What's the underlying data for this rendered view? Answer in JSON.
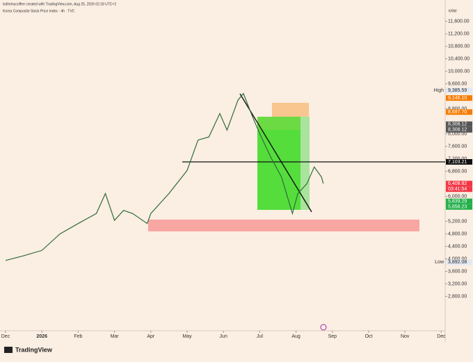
{
  "header": {
    "credit": "lxdimmycoffee created with TradingView.com, Aug 25, 2026 02:18 UTC+2",
    "symbol": "Korea Composite Stock Price Index · 4h · TVC",
    "currency": "KRW",
    "brand": "TradingView"
  },
  "chart_data": {
    "type": "line",
    "x": [
      0,
      0.5,
      1,
      1.5,
      2,
      2.5,
      2.75,
      3,
      3.25,
      3.5,
      3.9,
      4,
      4.5,
      5,
      5.3,
      5.6,
      5.9,
      6.1,
      6.4,
      6.55,
      6.8,
      7,
      7.3,
      7.6,
      7.9,
      8.05,
      8.3,
      8.5,
      8.7,
      8.75
    ],
    "series": [
      {
        "name": "Korea Composite Stock Price Index",
        "color": "#2f6b3a",
        "values": [
          3950,
          4100,
          4270,
          4800,
          5130,
          5450,
          6090,
          5230,
          5550,
          5450,
          5130,
          5450,
          6090,
          6830,
          7800,
          7900,
          8650,
          8120,
          9080,
          9290,
          8550,
          8010,
          7260,
          6620,
          5450,
          6090,
          6410,
          6940,
          6620,
          6408.82
        ]
      }
    ],
    "xlim": [
      -0.153,
      12.107
    ],
    "xticks": [
      {
        "value": 0,
        "label": "Dec"
      },
      {
        "value": 1,
        "label": "2026"
      },
      {
        "value": 2,
        "label": "Feb"
      },
      {
        "value": 3,
        "label": "Mar"
      },
      {
        "value": 4,
        "label": "Apr"
      },
      {
        "value": 5,
        "label": "May"
      },
      {
        "value": 6,
        "label": "Jun"
      },
      {
        "value": 7,
        "label": "Jul"
      },
      {
        "value": 8,
        "label": "Aug"
      },
      {
        "value": 9,
        "label": "Sep"
      },
      {
        "value": 10,
        "label": "Oct"
      },
      {
        "value": 11,
        "label": "Nov"
      },
      {
        "value": 12,
        "label": "Dec"
      }
    ],
    "ylim": [
      1700,
      12283
    ],
    "yticks": [
      {
        "value": 11600,
        "label": "11,600.00"
      },
      {
        "value": 11200,
        "label": "11,200.00"
      },
      {
        "value": 10800,
        "label": "10,800.00"
      },
      {
        "value": 10400,
        "label": "10,400.00"
      },
      {
        "value": 10000,
        "label": "10,000.00"
      },
      {
        "value": 9600,
        "label": "9,600.00"
      },
      {
        "value": 8800,
        "label": "8,800.00"
      },
      {
        "value": 8000,
        "label": "8,000.00"
      },
      {
        "value": 7600,
        "label": "7,600.00"
      },
      {
        "value": 7200,
        "label": "7,200.00"
      },
      {
        "value": 6800,
        "label": "6,800.00"
      },
      {
        "value": 6000,
        "label": "6,000.00"
      },
      {
        "value": 5200,
        "label": "5,200.00"
      },
      {
        "value": 4800,
        "label": "4,800.00"
      },
      {
        "value": 4400,
        "label": "4,400.00"
      },
      {
        "value": 4000,
        "label": "4,000.00"
      },
      {
        "value": 3600,
        "label": "3,600.00"
      },
      {
        "value": 3200,
        "label": "3,200.00"
      },
      {
        "value": 2800,
        "label": "2,800.00"
      }
    ],
    "price_labels": [
      {
        "name": "High",
        "value": 9385.59,
        "label": "9,385.59",
        "color": "#e3e9f2",
        "text_color": "#222"
      },
      {
        "value": 9146.1,
        "label": "9,146.10",
        "color": "#f57c00",
        "text_color": "#fff"
      },
      {
        "value": 8697.7,
        "label": "8,697.70",
        "color": "#f57c00",
        "text_color": "#fff"
      },
      {
        "value": 8308.12,
        "label": "8,308.12",
        "color": "#555",
        "text_color": "#fff"
      },
      {
        "value": 8308.12,
        "label": "8,308.12",
        "color": "#555",
        "text_color": "#fff"
      },
      {
        "value": 7103.21,
        "label": "7,103.21",
        "color": "#111",
        "text_color": "#fff"
      },
      {
        "value": 6408.82,
        "label": "6,408.82",
        "color": "#f23645",
        "text_color": "#fff",
        "countdown": "03:41:54"
      },
      {
        "value": 5839.29,
        "label": "5,839.29",
        "color": "#22b04a",
        "text_color": "#fff"
      },
      {
        "value": 5858.23,
        "label": "5,858.23",
        "color": "#22b04a",
        "text_color": "#fff"
      },
      {
        "name": "Low",
        "value": 3892.08,
        "label": "3,892.08",
        "color": "#e3e9f2",
        "text_color": "#222"
      }
    ]
  }
}
